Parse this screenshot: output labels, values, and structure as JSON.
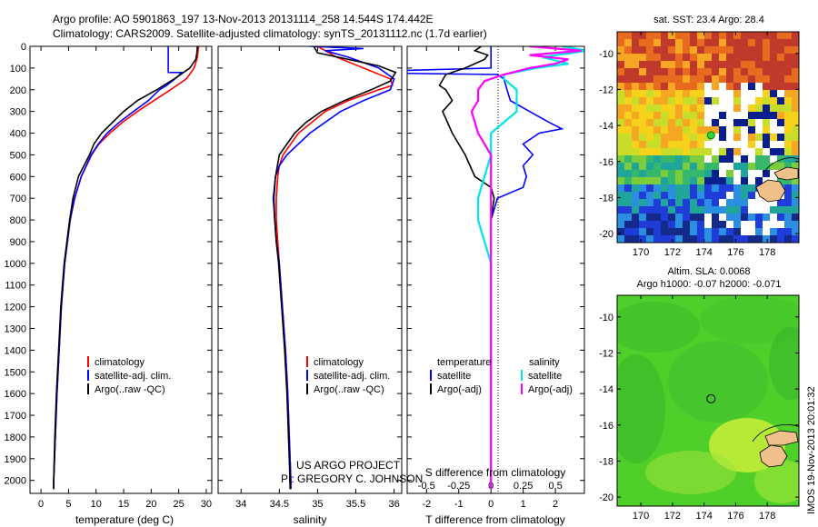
{
  "header": {
    "line1": "Argo profile: AO 5901863_197 13-Nov-2013 20131114_258 14.544S 174.442E",
    "line2": "Climatology: CARS2009. Satellite-adjusted climatology: synTS_20131112.nc (1.7d earlier)"
  },
  "colors": {
    "climatology": "#ff0000",
    "satellite": "#0000ff",
    "argo": "#000000",
    "sat_salinity": "#00e5e5",
    "argo_salinity": "#ff00ff",
    "ocean_bg": "#1f3bd8",
    "sla_bg": "#4fcf2a",
    "land": "#f0c08a"
  },
  "chart_data": [
    {
      "id": "temperature",
      "type": "line",
      "xlabel": "temperature (deg C)",
      "ylabel": "",
      "xlim": [
        -2,
        31
      ],
      "ylim": [
        2060,
        0
      ],
      "xticks": [
        0,
        5,
        10,
        15,
        20,
        25,
        30
      ],
      "yticks": [
        0,
        100,
        200,
        300,
        400,
        500,
        600,
        700,
        800,
        900,
        1000,
        1100,
        1200,
        1300,
        1400,
        1500,
        1600,
        1700,
        1800,
        1900,
        2000
      ],
      "legend_position": "lower-center",
      "legend": [
        "climatology",
        "satellite-adj. clim.",
        "Argo(..raw -QC)"
      ],
      "series": [
        {
          "name": "climatology",
          "color": "#ff0000",
          "depth": [
            0,
            50,
            100,
            150,
            200,
            250,
            300,
            350,
            400,
            450,
            500,
            600,
            700,
            800,
            900,
            1000,
            1200,
            1400,
            1600,
            1800,
            2000,
            2040
          ],
          "values": [
            28.6,
            28.4,
            27.8,
            26.4,
            23.5,
            20.5,
            17.5,
            14.8,
            12.5,
            10.5,
            9.2,
            7.3,
            6.1,
            5.3,
            4.8,
            4.3,
            3.7,
            3.3,
            2.9,
            2.6,
            2.3,
            2.3
          ]
        },
        {
          "name": "satellite-adj. clim.",
          "color": "#0000ff",
          "depth": [
            0,
            120,
            120.5,
            140,
            160,
            180,
            200,
            250,
            300,
            350,
            400,
            450,
            500,
            600,
            700,
            800,
            900,
            1000,
            1200,
            1400,
            1600,
            1800,
            2000,
            2040
          ],
          "values": [
            23.1,
            23.1,
            25.5,
            24.8,
            23.8,
            22.8,
            21.5,
            19.5,
            16.8,
            14.2,
            12.0,
            10.4,
            9.1,
            7.3,
            6.1,
            5.3,
            4.8,
            4.3,
            3.7,
            3.3,
            2.9,
            2.6,
            2.3,
            2.3
          ]
        },
        {
          "name": "Argo(..raw -QC)",
          "color": "#000000",
          "depth": [
            0,
            30,
            60,
            100,
            150,
            200,
            250,
            300,
            350,
            400,
            450,
            500,
            600,
            700,
            800,
            900,
            1000,
            1200,
            1400,
            1600,
            1800,
            2000,
            2040
          ],
          "values": [
            28.4,
            28.3,
            28.1,
            27.0,
            24.2,
            21.0,
            17.5,
            15.0,
            13.0,
            11.0,
            9.6,
            8.8,
            6.8,
            5.8,
            5.2,
            4.7,
            4.2,
            3.6,
            3.2,
            2.8,
            2.5,
            2.3,
            2.3
          ]
        }
      ]
    },
    {
      "id": "salinity",
      "type": "line",
      "xlabel": "salinity",
      "ylabel": "",
      "xlim": [
        33.7,
        36.1
      ],
      "ylim": [
        2060,
        0
      ],
      "xticks": [
        34,
        34.5,
        35,
        35.5,
        36
      ],
      "legend_position": "lower-center",
      "legend": [
        "climatology",
        "satellite-adj. clim.",
        "Argo(..raw -QC)"
      ],
      "annotation": [
        "US ARGO PROJECT",
        "PI: GREGORY C. JOHNSON"
      ],
      "series": [
        {
          "name": "climatology",
          "color": "#ff0000",
          "depth": [
            0,
            50,
            100,
            150,
            180,
            200,
            250,
            300,
            400,
            500,
            550,
            600,
            700,
            800,
            900,
            1000,
            1200,
            1400,
            1600,
            1800,
            2000,
            2040
          ],
          "values": [
            35.0,
            35.25,
            35.6,
            35.95,
            35.98,
            35.8,
            35.4,
            35.1,
            34.75,
            34.55,
            34.5,
            34.48,
            34.46,
            34.46,
            34.48,
            34.5,
            34.54,
            34.58,
            34.61,
            34.63,
            34.65,
            34.65
          ]
        },
        {
          "name": "satellite-adj. clim.",
          "color": "#0000ff",
          "depth": [
            0,
            10,
            20,
            50,
            100,
            150,
            200,
            250,
            300,
            400,
            500,
            550,
            600,
            700,
            800,
            900,
            1000,
            1200,
            1400,
            1600,
            1800,
            2000,
            2040
          ],
          "values": [
            34.9,
            35.6,
            35.1,
            35.4,
            35.8,
            36.0,
            35.95,
            35.6,
            35.3,
            34.9,
            34.6,
            34.5,
            34.45,
            34.42,
            34.44,
            34.46,
            34.5,
            34.54,
            34.58,
            34.61,
            34.63,
            34.65,
            34.65
          ]
        },
        {
          "name": "Argo(..raw -QC)",
          "color": "#000000",
          "depth": [
            0,
            30,
            60,
            90,
            120,
            160,
            200,
            250,
            300,
            350,
            400,
            450,
            500,
            600,
            700,
            800,
            900,
            1000,
            1200,
            1400,
            1600,
            1800,
            2000,
            2040
          ],
          "values": [
            34.95,
            35.0,
            35.4,
            35.8,
            36.02,
            35.95,
            35.7,
            35.35,
            35.05,
            34.85,
            34.7,
            34.6,
            34.5,
            34.45,
            34.43,
            34.44,
            34.46,
            34.49,
            34.53,
            34.57,
            34.6,
            34.62,
            34.64,
            34.64
          ]
        }
      ]
    },
    {
      "id": "difference",
      "type": "line",
      "xlabel": "T difference from climatology",
      "xlabel_top": "S difference from climatology",
      "xlim": [
        -2.6,
        2.9
      ],
      "ylim": [
        2060,
        0
      ],
      "xticks_T": [
        -2,
        -1,
        0,
        1,
        2
      ],
      "xticks_S": [
        -0.5,
        -0.25,
        0,
        0.25,
        0.5
      ],
      "legend_position": "lower-center",
      "legend_temperature_title": "temperature",
      "legend_salinity_title": "salinity",
      "legend": [
        "satellite",
        "Argo(-adj)",
        "satellite",
        "Argo(-adj)"
      ],
      "series": [
        {
          "name": "T satellite",
          "color": "#0000ff",
          "depth": [
            0,
            100,
            120,
            130,
            150,
            200,
            250,
            300,
            350,
            380,
            400,
            450,
            500,
            550,
            600,
            650,
            700,
            800,
            1000,
            1200,
            1500,
            2040
          ],
          "values": [
            0.0,
            0.0,
            -5.0,
            0.2,
            0.4,
            0.5,
            0.6,
            1.2,
            1.8,
            2.2,
            1.5,
            1.0,
            1.3,
            1.0,
            1.1,
            1.0,
            0.2,
            0.0,
            0.0,
            0.0,
            0.0,
            0.0
          ]
        },
        {
          "name": "T Argo(-adj)",
          "color": "#000000",
          "depth": [
            0,
            20,
            40,
            60,
            100,
            130,
            180,
            200,
            250,
            300,
            400,
            500,
            600,
            650,
            700,
            800,
            1000,
            1200,
            1500,
            2040
          ],
          "values": [
            -0.3,
            -0.5,
            -0.1,
            -0.2,
            -0.8,
            -1.4,
            -1.6,
            -1.4,
            -1.2,
            -1.5,
            -1.2,
            -0.8,
            -0.5,
            0.0,
            0.1,
            0.0,
            0.0,
            0.0,
            0.0,
            0.0
          ]
        },
        {
          "name": "S satellite",
          "color": "#00e5e5",
          "depth": [
            0,
            20,
            50,
            80,
            100,
            130,
            150,
            200,
            300,
            400,
            500,
            600,
            700,
            800,
            900,
            1000,
            1200,
            1600,
            2040
          ],
          "values": [
            0.55,
            0.75,
            0.4,
            0.6,
            0.35,
            0.1,
            0.1,
            0.2,
            0.2,
            0.0,
            0.0,
            -0.05,
            -0.1,
            -0.1,
            -0.05,
            0.0,
            0.0,
            0.0,
            0.0
          ]
        },
        {
          "name": "S Argo(-adj)",
          "color": "#ff00ff",
          "depth": [
            0,
            20,
            40,
            60,
            80,
            100,
            130,
            160,
            200,
            250,
            300,
            400,
            500,
            600,
            700,
            800,
            1000,
            1200,
            1600,
            2040
          ],
          "values": [
            0.3,
            0.7,
            0.3,
            0.6,
            0.5,
            0.3,
            0.1,
            -0.05,
            -0.1,
            -0.1,
            -0.15,
            -0.1,
            0.0,
            0.0,
            0.0,
            0.0,
            0.0,
            0.0,
            0.0,
            0.0
          ]
        }
      ]
    },
    {
      "id": "sst_map",
      "type": "heatmap",
      "title": "sat. SST: 23.4  Argo: 28.4",
      "xlim": [
        168.5,
        180
      ],
      "ylim": [
        -20.5,
        -8.8
      ],
      "xticks": [
        170,
        172,
        174,
        176,
        178
      ],
      "yticks": [
        -10,
        -12,
        -14,
        -16,
        -18,
        -20
      ],
      "argo_position": [
        174.442,
        -14.544
      ]
    },
    {
      "id": "sla_map",
      "type": "heatmap",
      "title": "Altim. SLA: 0.0068",
      "subtitle": "Argo h1000: -0.07 h2000: -0.071",
      "xlim": [
        168.5,
        180
      ],
      "ylim": [
        -20.5,
        -8.8
      ],
      "xticks": [
        170,
        172,
        174,
        176,
        178
      ],
      "yticks": [
        -10,
        -12,
        -14,
        -16,
        -18,
        -20
      ],
      "argo_position": [
        174.442,
        -14.544
      ]
    }
  ],
  "credit": "IMOS 19-Nov-2013 20:01:32"
}
